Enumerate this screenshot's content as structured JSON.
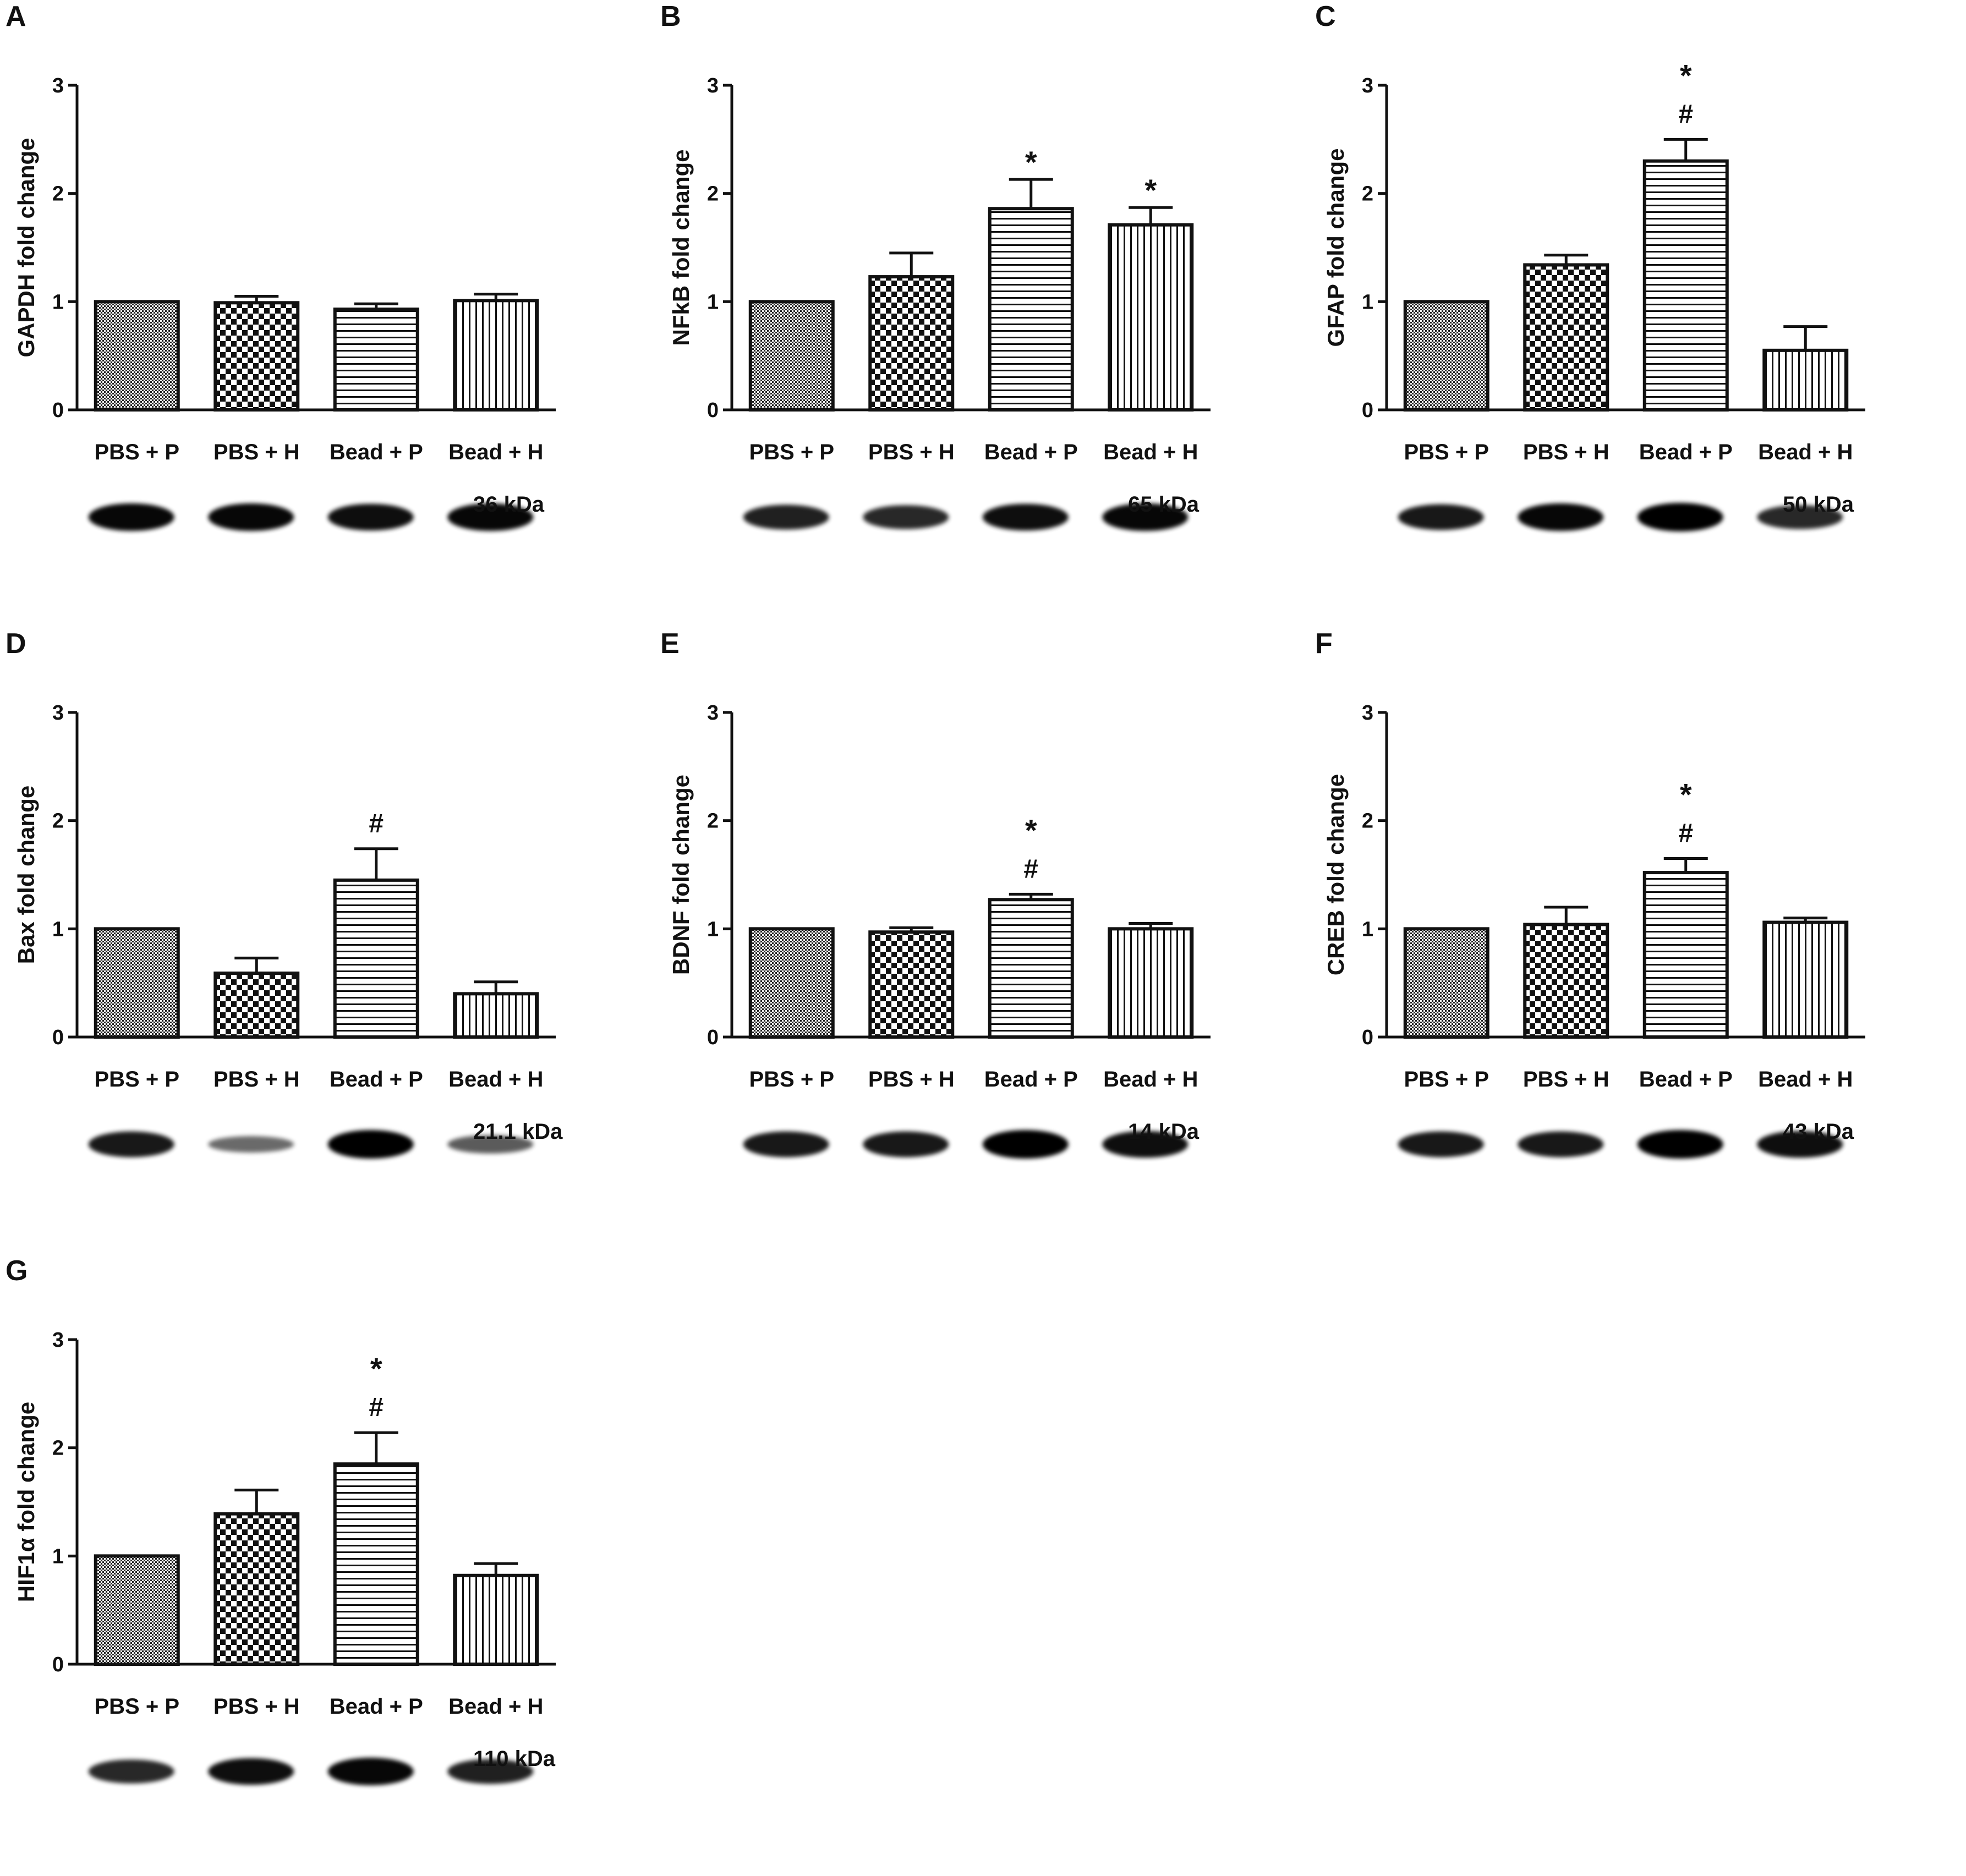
{
  "chart_data": [
    {
      "panel": "A",
      "type": "bar",
      "categories": [
        "PBS + P",
        "PBS + H",
        "Bead + P",
        "Bead + H"
      ],
      "values": [
        1.0,
        0.99,
        0.93,
        1.01
      ],
      "errors": [
        0.0,
        0.06,
        0.05,
        0.06
      ],
      "significance": [
        "",
        "",
        "",
        ""
      ],
      "ylabel": "GAPDH fold change",
      "ylim": [
        0,
        3
      ],
      "yticks": [
        "0",
        "1",
        "2",
        "3"
      ],
      "band_label": "36 kDa",
      "band_intensity": [
        0.95,
        0.95,
        0.9,
        0.95
      ]
    },
    {
      "panel": "B",
      "type": "bar",
      "categories": [
        "PBS + P",
        "PBS + H",
        "Bead + P",
        "Bead + H"
      ],
      "values": [
        1.0,
        1.23,
        1.86,
        1.71
      ],
      "errors": [
        0.0,
        0.22,
        0.27,
        0.16
      ],
      "significance": [
        "",
        "",
        "*",
        "*"
      ],
      "ylabel": "NFkB fold change",
      "ylim": [
        0,
        3
      ],
      "yticks": [
        "0",
        "1",
        "2",
        "3"
      ],
      "band_label": "65 kDa",
      "band_intensity": [
        0.8,
        0.75,
        0.9,
        0.95
      ]
    },
    {
      "panel": "C",
      "type": "bar",
      "categories": [
        "PBS + P",
        "PBS + H",
        "Bead + P",
        "Bead + H"
      ],
      "values": [
        1.0,
        1.34,
        2.3,
        0.55
      ],
      "errors": [
        0.0,
        0.09,
        0.2,
        0.22
      ],
      "significance": [
        "",
        "",
        "*\n#",
        ""
      ],
      "ylabel": "GFAP fold change",
      "ylim": [
        0,
        3
      ],
      "yticks": [
        "0",
        "1",
        "2",
        "3"
      ],
      "band_label": "50 kDa",
      "band_intensity": [
        0.85,
        0.95,
        1.0,
        0.75
      ]
    },
    {
      "panel": "D",
      "type": "bar",
      "categories": [
        "PBS + P",
        "PBS + H",
        "Bead + P",
        "Bead + H"
      ],
      "values": [
        1.0,
        0.59,
        1.45,
        0.4
      ],
      "errors": [
        0.0,
        0.14,
        0.29,
        0.11
      ],
      "significance": [
        "",
        "",
        "#",
        ""
      ],
      "ylabel": "Bax fold change",
      "ylim": [
        0,
        3
      ],
      "yticks": [
        "0",
        "1",
        "2",
        "3"
      ],
      "band_label": "21.1 kDa",
      "band_intensity": [
        0.85,
        0.35,
        1.0,
        0.45
      ]
    },
    {
      "panel": "E",
      "type": "bar",
      "categories": [
        "PBS + P",
        "PBS + H",
        "Bead + P",
        "Bead + H"
      ],
      "values": [
        1.0,
        0.97,
        1.27,
        1.0
      ],
      "errors": [
        0.0,
        0.04,
        0.05,
        0.05
      ],
      "significance": [
        "",
        "",
        "*\n#",
        ""
      ],
      "ylabel": "BDNF fold change",
      "ylim": [
        0,
        3
      ],
      "yticks": [
        "0",
        "1",
        "2",
        "3"
      ],
      "band_label": "14 kDa",
      "band_intensity": [
        0.85,
        0.85,
        1.0,
        0.9
      ]
    },
    {
      "panel": "F",
      "type": "bar",
      "categories": [
        "PBS + P",
        "PBS + H",
        "Bead + P",
        "Bead + H"
      ],
      "values": [
        1.0,
        1.04,
        1.52,
        1.06
      ],
      "errors": [
        0.0,
        0.16,
        0.13,
        0.04
      ],
      "significance": [
        "",
        "",
        "*\n#",
        ""
      ],
      "ylabel": "CREB fold change",
      "ylim": [
        0,
        3
      ],
      "yticks": [
        "0",
        "1",
        "2",
        "3"
      ],
      "band_label": "43 kDa",
      "band_intensity": [
        0.85,
        0.85,
        1.0,
        0.9
      ]
    },
    {
      "panel": "G",
      "type": "bar",
      "categories": [
        "PBS + P",
        "PBS + H",
        "Bead + P",
        "Bead + H"
      ],
      "values": [
        1.0,
        1.39,
        1.85,
        0.82
      ],
      "errors": [
        0.0,
        0.22,
        0.29,
        0.11
      ],
      "significance": [
        "",
        "",
        "*\n#",
        ""
      ],
      "ylabel": "HIF1α fold change",
      "ylim": [
        0,
        3
      ],
      "yticks": [
        "0",
        "1",
        "2",
        "3"
      ],
      "band_label": "110 kDa",
      "band_intensity": [
        0.75,
        0.9,
        0.95,
        0.8
      ]
    }
  ]
}
